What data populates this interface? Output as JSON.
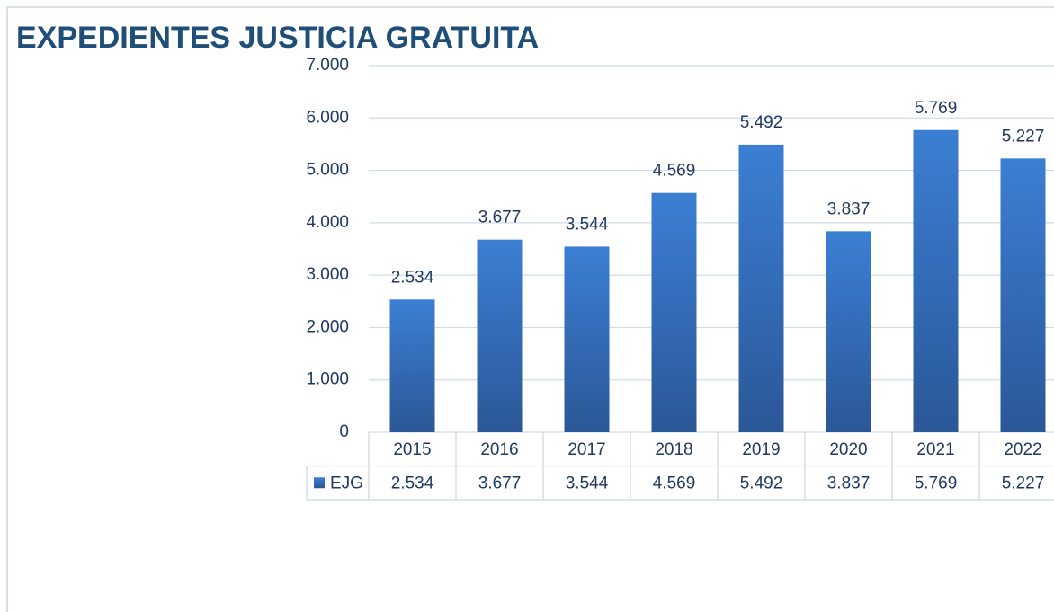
{
  "chart_data": {
    "type": "bar",
    "title": "EXPEDIENTES JUSTICIA GRATUITA",
    "categories": [
      "2015",
      "2016",
      "2017",
      "2018",
      "2019",
      "2020",
      "2021",
      "2022"
    ],
    "series": [
      {
        "name": "EJG",
        "color": "#3370c0",
        "values": [
          2534,
          3677,
          3544,
          4569,
          5492,
          3837,
          5769,
          5227
        ],
        "value_labels": [
          "2.534",
          "3.677",
          "3.544",
          "4.569",
          "5.492",
          "3.837",
          "5.769",
          "5.227"
        ]
      }
    ],
    "ylim": [
      0,
      7000
    ],
    "yticks": [
      0,
      {
        "value": 1000,
        "label": "1.000"
      },
      {
        "value": 2000,
        "label": "2.000"
      },
      {
        "value": 3000,
        "label": "3.000"
      },
      {
        "value": 4000,
        "label": "4.000"
      },
      {
        "value": 5000,
        "label": "5.000"
      },
      {
        "value": 6000,
        "label": "6.000"
      },
      {
        "value": 7000,
        "label": "7.000"
      }
    ],
    "grid": true,
    "data_table": true
  }
}
